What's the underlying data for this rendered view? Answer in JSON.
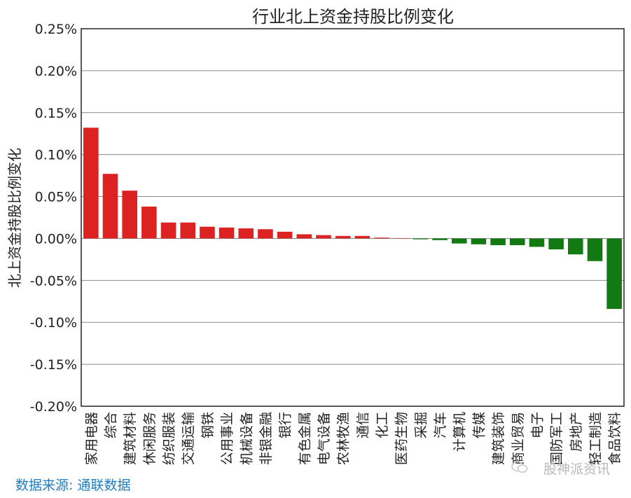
{
  "chart_data": {
    "type": "bar",
    "title": "行业北上资金持股比例变化",
    "ylabel": "北上资金持股比例变化",
    "xlabel": "",
    "ylim": [
      -0.2,
      0.25
    ],
    "y_ticks": [
      "0.25%",
      "0.20%",
      "0.15%",
      "0.10%",
      "0.05%",
      "0.00%",
      "-0.05%",
      "-0.10%",
      "-0.15%",
      "-0.20%"
    ],
    "y_tick_values": [
      0.25,
      0.2,
      0.15,
      0.1,
      0.05,
      0.0,
      -0.05,
      -0.1,
      -0.15,
      -0.2
    ],
    "grid": "horizontal",
    "categories": [
      "家用电器",
      "综合",
      "建筑材料",
      "休闲服务",
      "纺织服装",
      "交通运输",
      "钢铁",
      "公用事业",
      "机械设备",
      "非银金融",
      "银行",
      "有色金属",
      "电气设备",
      "农林牧渔",
      "通信",
      "化工",
      "医药生物",
      "采掘",
      "汽车",
      "计算机",
      "传媒",
      "建筑装饰",
      "商业贸易",
      "电子",
      "国防军工",
      "房地产",
      "轻工制造",
      "食品饮料"
    ],
    "values": [
      0.132,
      0.077,
      0.057,
      0.038,
      0.019,
      0.019,
      0.014,
      0.013,
      0.012,
      0.011,
      0.008,
      0.005,
      0.004,
      0.003,
      0.003,
      0.001,
      0.0,
      -0.001,
      -0.002,
      -0.006,
      -0.007,
      -0.008,
      -0.008,
      -0.01,
      -0.013,
      -0.019,
      -0.027,
      -0.084
    ],
    "colors": {
      "positive": "#dd2222",
      "negative": "#137a13"
    }
  },
  "source": "数据来源: 通联数据",
  "watermark": "股神派资讯"
}
